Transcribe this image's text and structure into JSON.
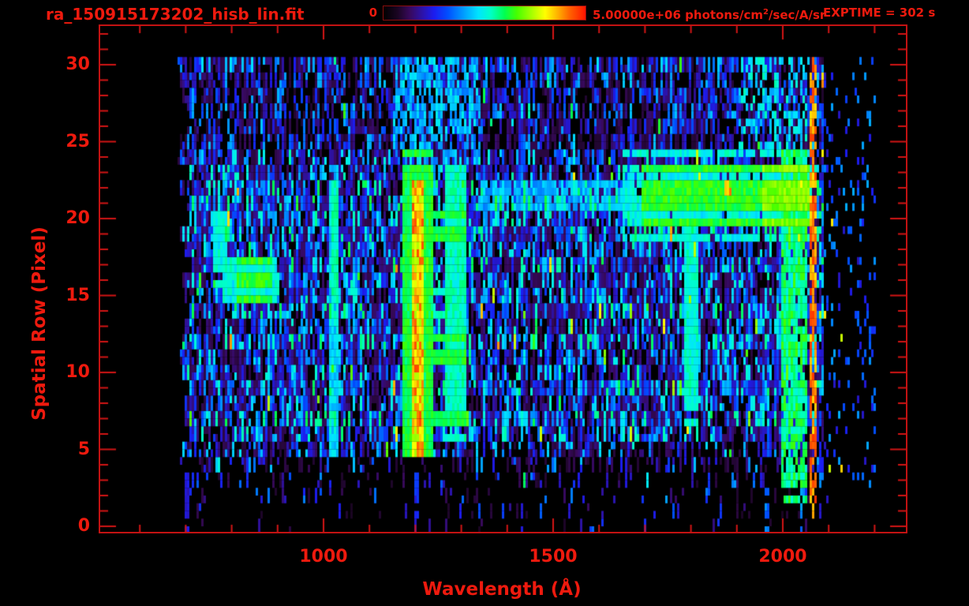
{
  "header": {
    "filename": "ra_150915173202_hisb_lin.fit",
    "exptime_label": "EXPTIME = 302 s"
  },
  "colorbar": {
    "min_label": "0",
    "max_label_prefix": "5.00000e+06 photons/cm",
    "max_label_sup": "2",
    "max_label_suffix": "/sec/A/sr",
    "min_value": 0,
    "max_value": 5000000,
    "units": "photons/cm^2/sec/A/sr",
    "stops": [
      [
        0.0,
        "#000000"
      ],
      [
        0.07,
        "#1a0522"
      ],
      [
        0.13,
        "#38095c"
      ],
      [
        0.19,
        "#2d12a6"
      ],
      [
        0.25,
        "#1c1cf0"
      ],
      [
        0.32,
        "#0050ff"
      ],
      [
        0.4,
        "#00a0ff"
      ],
      [
        0.47,
        "#00e4ff"
      ],
      [
        0.53,
        "#00ffc8"
      ],
      [
        0.6,
        "#00ff50"
      ],
      [
        0.66,
        "#46ff00"
      ],
      [
        0.73,
        "#a2ff00"
      ],
      [
        0.8,
        "#ffff00"
      ],
      [
        0.86,
        "#ffb400"
      ],
      [
        0.92,
        "#ff6400"
      ],
      [
        1.0,
        "#ff1400"
      ]
    ]
  },
  "chart_data": {
    "type": "heatmap",
    "title": "ra_150915173202_hisb_lin.fit",
    "xlabel": "Wavelength (Å)",
    "ylabel": "Spatial Row (Pixel)",
    "exposure_time_s": 302,
    "value_scale": {
      "min": 0,
      "max": 5000000,
      "units": "photons/cm2/sec/A/sr",
      "scaling": "linear"
    },
    "x_axis": {
      "range": [
        512,
        2268
      ],
      "major_ticks": [
        1000,
        1500,
        2000
      ],
      "minor_tick_step": 100,
      "unit": "Angstrom"
    },
    "y_axis": {
      "range": [
        -0.4,
        32.4
      ],
      "major_ticks": [
        0,
        5,
        10,
        15,
        20,
        25,
        30
      ],
      "minor_tick_step": 1,
      "unit": "pixel"
    },
    "grid": false,
    "data_extent": {
      "wavelength_A": [
        677,
        2230
      ],
      "rows": [
        0,
        30
      ]
    },
    "row_noise_profile": [
      [
        0.05,
        0.2
      ],
      [
        0.07,
        0.2
      ],
      [
        0.14,
        0.22
      ],
      [
        0.18,
        0.22
      ],
      [
        0.32,
        0.24
      ],
      [
        0.58,
        0.26
      ],
      [
        0.8,
        0.3
      ],
      [
        0.86,
        0.33
      ],
      [
        0.8,
        0.28
      ],
      [
        0.86,
        0.32
      ],
      [
        0.82,
        0.3
      ],
      [
        0.8,
        0.28
      ],
      [
        0.86,
        0.32
      ],
      [
        0.8,
        0.29
      ],
      [
        0.86,
        0.33
      ],
      [
        0.82,
        0.3
      ],
      [
        0.82,
        0.3
      ],
      [
        0.86,
        0.33
      ],
      [
        0.82,
        0.3
      ],
      [
        0.86,
        0.33
      ],
      [
        0.84,
        0.31
      ],
      [
        0.88,
        0.34
      ],
      [
        0.86,
        0.33
      ],
      [
        0.82,
        0.3
      ],
      [
        0.78,
        0.28
      ],
      [
        0.66,
        0.24
      ],
      [
        0.62,
        0.23
      ],
      [
        0.66,
        0.24
      ],
      [
        0.62,
        0.23
      ],
      [
        0.66,
        0.24
      ],
      [
        0.72,
        0.26
      ]
    ],
    "features": [
      {
        "name": "lyman-beta-line",
        "wl": [
          1012,
          1032
        ],
        "rows": [
          4.7,
          23.0
        ],
        "v": [
          0.4,
          0.52
        ],
        "d": 1
      },
      {
        "name": "lyman-beta-bright",
        "wl": [
          1016,
          1028
        ],
        "rows": [
          14.0,
          22.0
        ],
        "v": [
          0.5,
          0.58
        ],
        "d": 1
      },
      {
        "name": "crescent-upper",
        "wl": [
          757,
          790
        ],
        "rows": [
          16.0,
          20.3
        ],
        "v": [
          0.45,
          0.55
        ],
        "d": 1
      },
      {
        "name": "crescent-hook",
        "wl": [
          775,
          895
        ],
        "rows": [
          14.6,
          17.5
        ],
        "v": [
          0.45,
          0.55
        ],
        "d": 1
      },
      {
        "name": "crescent-core",
        "wl": [
          810,
          885
        ],
        "rows": [
          15.0,
          17.2
        ],
        "v": [
          0.58,
          0.68
        ],
        "d": 1
      },
      {
        "name": "lyman-alpha-column",
        "wl": [
          1168,
          1238
        ],
        "rows": [
          4.7,
          24.0
        ],
        "v": [
          0.56,
          0.66
        ],
        "d": 1
      },
      {
        "name": "lyman-alpha-core",
        "wl": [
          1188,
          1217
        ],
        "rows": [
          4.7,
          22.5
        ],
        "v": [
          0.72,
          0.95
        ],
        "d": 1
      },
      {
        "name": "secondary-column-1300",
        "wl": [
          1264,
          1310
        ],
        "rows": [
          5.8,
          23.3
        ],
        "v": [
          0.48,
          0.58
        ],
        "d": 1
      },
      {
        "name": "ladder-rung-row19",
        "wl": [
          1210,
          1308
        ],
        "rows": [
          18.6,
          19.8
        ],
        "v": [
          0.58,
          0.66
        ],
        "d": 1
      },
      {
        "name": "ladder-rung-row11",
        "wl": [
          1210,
          1308
        ],
        "rows": [
          10.6,
          11.8
        ],
        "v": [
          0.58,
          0.66
        ],
        "d": 1
      },
      {
        "name": "ladder-rung-row7",
        "wl": [
          1210,
          1308
        ],
        "rows": [
          6.6,
          7.7
        ],
        "v": [
          0.56,
          0.64
        ],
        "d": 1
      },
      {
        "name": "cyan-bridge-row14",
        "wl": [
          1233,
          1268
        ],
        "rows": [
          13.8,
          14.8
        ],
        "v": [
          0.5,
          0.56
        ],
        "d": 1
      },
      {
        "name": "band-fringe-topright",
        "wl": [
          1650,
          2060
        ],
        "rows": [
          19.2,
          23.8
        ],
        "v": [
          0.45,
          0.55
        ],
        "d": 0.9
      },
      {
        "name": "band-core-topright",
        "wl": [
          1690,
          2058
        ],
        "rows": [
          20.1,
          22.8
        ],
        "v": [
          0.58,
          0.68
        ],
        "d": 1
      },
      {
        "name": "band-hot-topright",
        "wl": [
          1955,
          2055
        ],
        "rows": [
          20.1,
          22.8
        ],
        "v": [
          0.66,
          0.74
        ],
        "d": 1
      },
      {
        "name": "cyan-column-1800",
        "wl": [
          1782,
          1812
        ],
        "rows": [
          7.0,
          19.5
        ],
        "v": [
          0.46,
          0.56
        ],
        "d": 1
      },
      {
        "name": "green-column-2020",
        "wl": [
          1993,
          2052
        ],
        "rows": [
          2.0,
          24.5
        ],
        "v": [
          0.5,
          0.66
        ],
        "d": 0.85
      },
      {
        "name": "saturated-red-column-2060",
        "wl": [
          2055,
          2071
        ],
        "rows": [
          1.5,
          30.5
        ],
        "v": [
          0.82,
          0.97
        ],
        "d": 0.78
      },
      {
        "name": "sparse-tail-right",
        "wl": [
          2071,
          2200
        ],
        "rows": [
          2.0,
          30.0
        ],
        "v": [
          0.2,
          0.42
        ],
        "d": 0.12
      },
      {
        "name": "sparse-tail-red-specks",
        "wl": [
          2071,
          2130
        ],
        "rows": [
          2.0,
          30.0
        ],
        "v": [
          0.75,
          0.9
        ],
        "d": 0.02
      },
      {
        "name": "bright-noise-above-lya",
        "wl": [
          1150,
          1340
        ],
        "rows": [
          24.0,
          30.5
        ],
        "v": [
          0.35,
          0.5
        ],
        "d": 0.5
      },
      {
        "name": "cyan-noise-topright",
        "wl": [
          1900,
          2052
        ],
        "rows": [
          24.5,
          30.5
        ],
        "v": [
          0.4,
          0.55
        ],
        "d": 0.35
      },
      {
        "name": "bright-row21-mid",
        "wl": [
          1340,
          1660
        ],
        "rows": [
          20.6,
          22.6
        ],
        "v": [
          0.36,
          0.48
        ],
        "d": 0.8
      },
      {
        "name": "sub-streak-700",
        "wl": [
          695,
          703
        ],
        "rows": [
          0.0,
          3.4
        ],
        "v": [
          0.2,
          0.26
        ],
        "d": 1
      },
      {
        "name": "sub-streak-1200",
        "wl": [
          1197,
          1205
        ],
        "rows": [
          0.8,
          3.6
        ],
        "v": [
          0.22,
          0.3
        ],
        "d": 1
      },
      {
        "name": "sub-streak-1960",
        "wl": [
          1960,
          1967
        ],
        "rows": [
          0.0,
          2.2
        ],
        "v": [
          0.3,
          0.4
        ],
        "d": 1
      },
      {
        "name": "sub-streak-2038",
        "wl": [
          2035,
          2042
        ],
        "rows": [
          0.0,
          2.0
        ],
        "v": [
          0.3,
          0.45
        ],
        "d": 1
      },
      {
        "name": "sub-streak-red-2062",
        "wl": [
          2060,
          2066
        ],
        "rows": [
          0.5,
          1.5
        ],
        "v": [
          0.8,
          0.9
        ],
        "d": 1
      }
    ]
  }
}
